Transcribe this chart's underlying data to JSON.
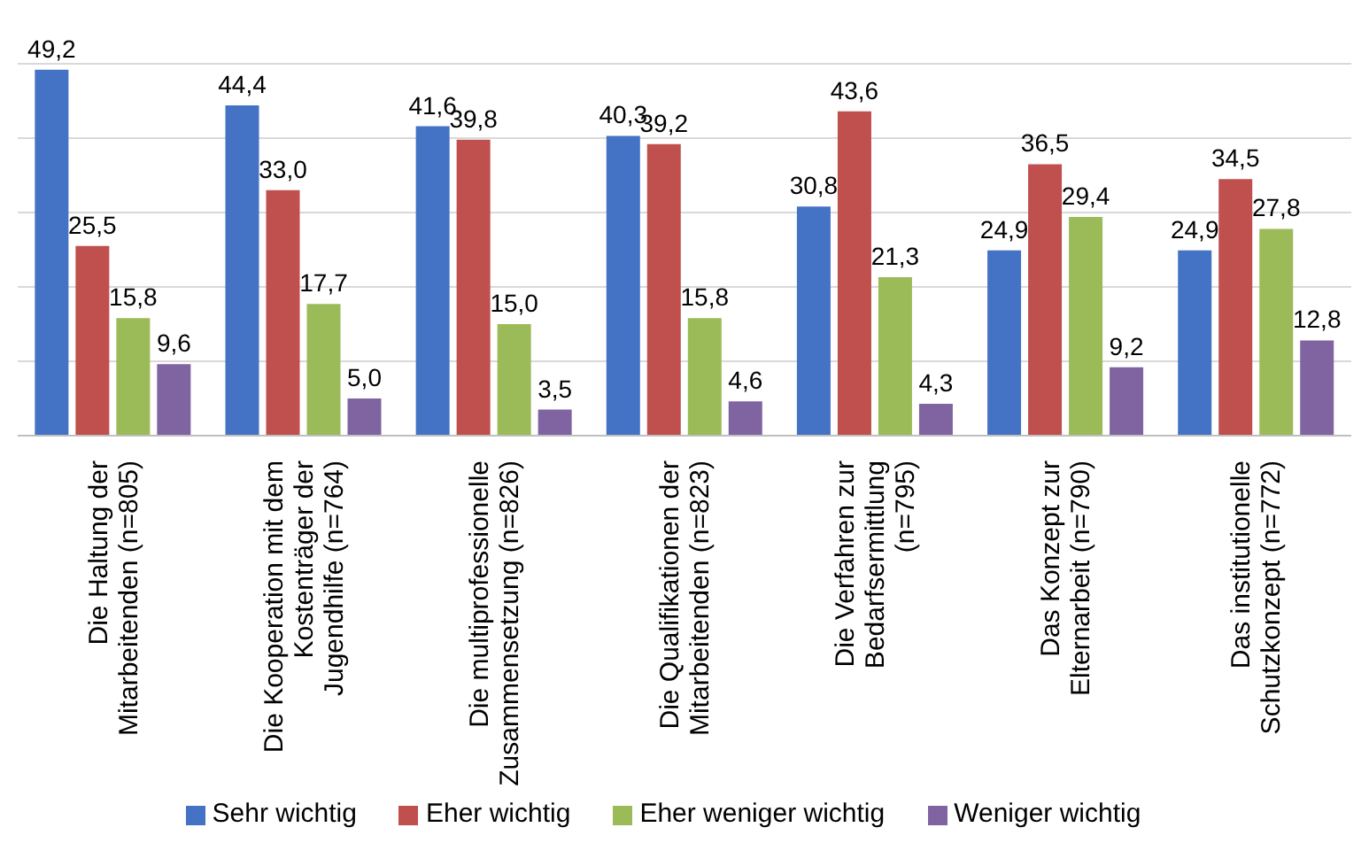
{
  "chart_data": {
    "type": "bar",
    "categories": [
      "Die Haltung der Mitarbeitenden (n=805)",
      "Die Kooperation mit dem Kostenträger der Jugendhilfe (n=764)",
      "Die multiprofessionelle Zusammensetzung (n=826)",
      "Die Qualifikationen der Mitarbeitenden (n=823)",
      "Die Verfahren zur Bedarfsermittlung (n=795)",
      "Das Konzept zur Elternarbeit (n=790)",
      "Das institutionelle Schutzkonzept (n=772)"
    ],
    "series": [
      {
        "name": "Sehr wichtig",
        "color": "#4472c4",
        "values": [
          49.2,
          44.4,
          41.6,
          40.3,
          30.8,
          24.9,
          24.9
        ],
        "value_labels": [
          "49,2",
          "44,4",
          "41,6",
          "40,3",
          "30,8",
          "24,9",
          "24,9"
        ]
      },
      {
        "name": "Eher wichtig",
        "color": "#c0504d",
        "values": [
          25.5,
          33.0,
          39.8,
          39.2,
          43.6,
          36.5,
          34.5
        ],
        "value_labels": [
          "25,5",
          "33,0",
          "39,8",
          "39,2",
          "43,6",
          "36,5",
          "34,5"
        ]
      },
      {
        "name": "Eher weniger wichtig",
        "color": "#9bbb59",
        "values": [
          15.8,
          17.7,
          15.0,
          15.8,
          21.3,
          29.4,
          27.8
        ],
        "value_labels": [
          "15,8",
          "17,7",
          "15,0",
          "15,8",
          "21,3",
          "29,4",
          "27,8"
        ]
      },
      {
        "name": "Weniger wichtig",
        "color": "#8064a2",
        "values": [
          9.6,
          5.0,
          3.5,
          4.6,
          4.3,
          9.2,
          12.8
        ],
        "value_labels": [
          "9,6",
          "5,0",
          "3,5",
          "4,6",
          "4,3",
          "9,2",
          "12,8"
        ]
      }
    ],
    "ylim": [
      0,
      50
    ],
    "yticks": [
      {
        "value": 0,
        "label": null
      },
      {
        "value": 10,
        "label": null
      },
      {
        "value": 20,
        "label": null
      },
      {
        "value": 30,
        "label": null
      },
      {
        "value": 40,
        "label": null
      },
      {
        "value": 50,
        "label": null
      }
    ],
    "grid": "y",
    "legend": "bottom",
    "tick_labels": "x"
  }
}
